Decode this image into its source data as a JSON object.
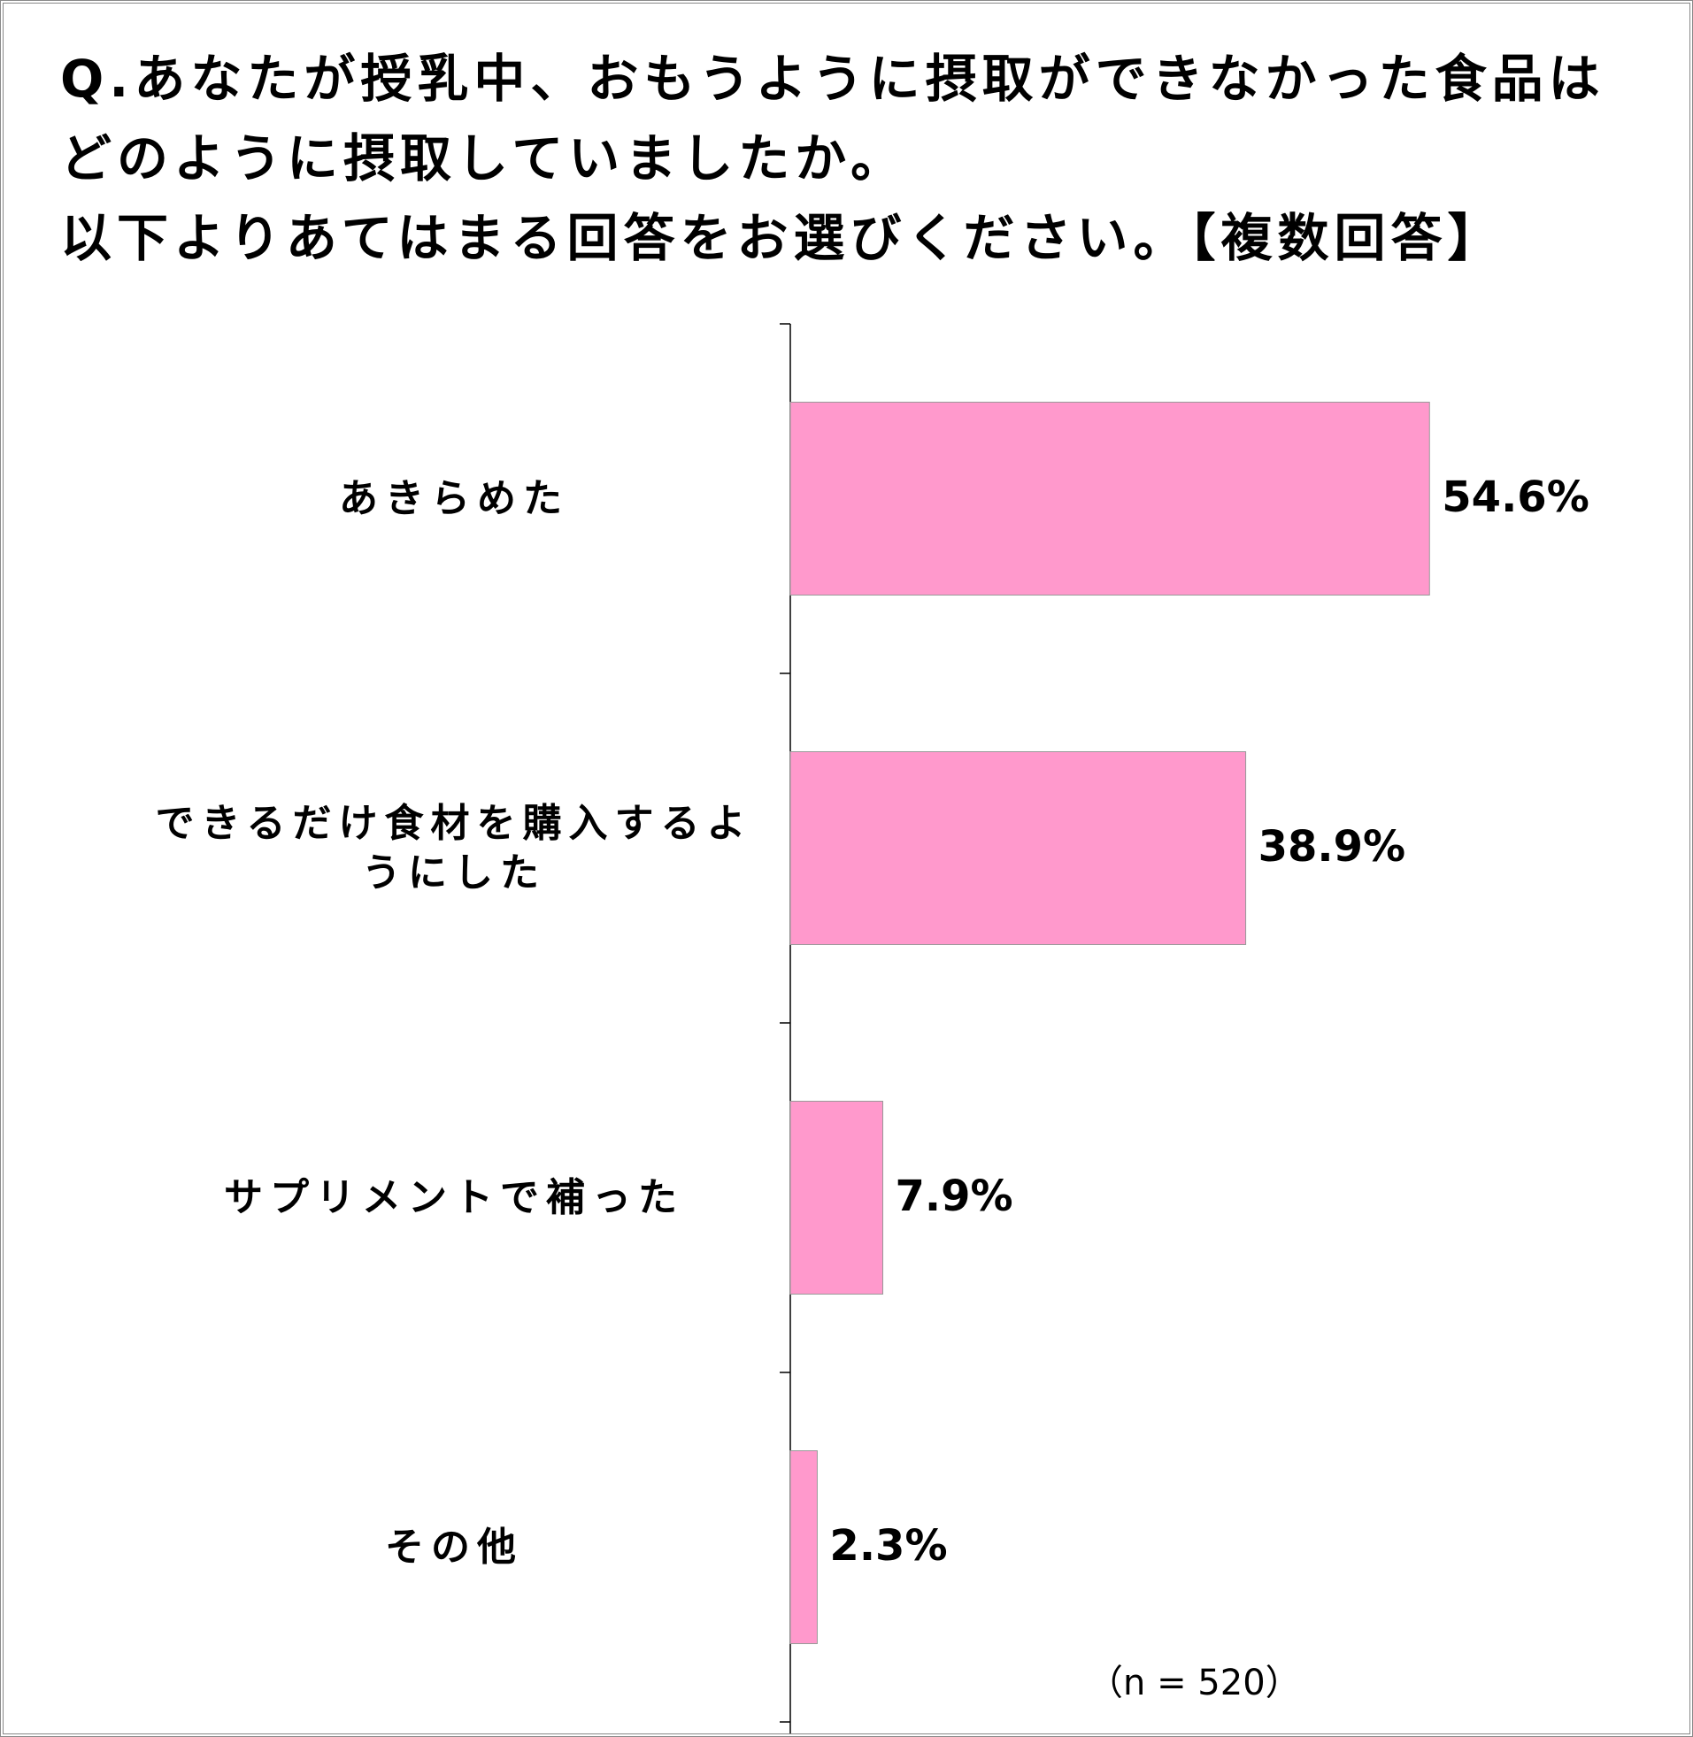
{
  "chart_data": {
    "type": "hbar",
    "title": [
      "Q.あなたが授乳中、おもうように摂取ができなかった食品は",
      "どのように摂取していましたか。",
      "以下よりあてはまる回答をお選びください。【複数回答】"
    ],
    "categories": [
      "あきらめた",
      "できるだけ食材を購入するようにした",
      "サプリメントで補った",
      "その他"
    ],
    "values": [
      54.6,
      38.9,
      7.9,
      2.3
    ],
    "value_labels": [
      "54.6%",
      "38.9%",
      "7.9%",
      "2.3%"
    ],
    "xlim": [
      0,
      70
    ],
    "color": "#ff99cc",
    "annotation": "（n = 520）"
  }
}
